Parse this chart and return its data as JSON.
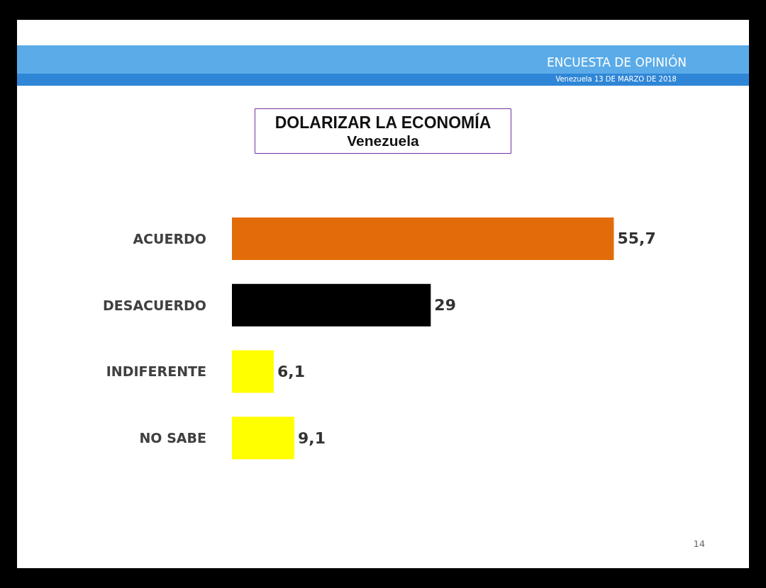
{
  "chart_data": {
    "type": "bar",
    "orientation": "horizontal",
    "title": "DOLARIZAR LA ECONOMÍA",
    "subtitle": "Venezuela",
    "categories": [
      "ACUERDO",
      "DESACUERDO",
      "INDIFERENTE",
      "NO SABE"
    ],
    "values": [
      55.7,
      29,
      6.1,
      9.1
    ],
    "colors": [
      "#e36c0a",
      "#000000",
      "#ffff00",
      "#ffff00"
    ],
    "value_labels": [
      "55,7",
      "29",
      "6,1",
      "9,1"
    ],
    "annotations": [
      "ENCUESTA DE OPINIÓN",
      "Venezuela  13  DE  MARZO DE 2018",
      "14"
    ]
  }
}
